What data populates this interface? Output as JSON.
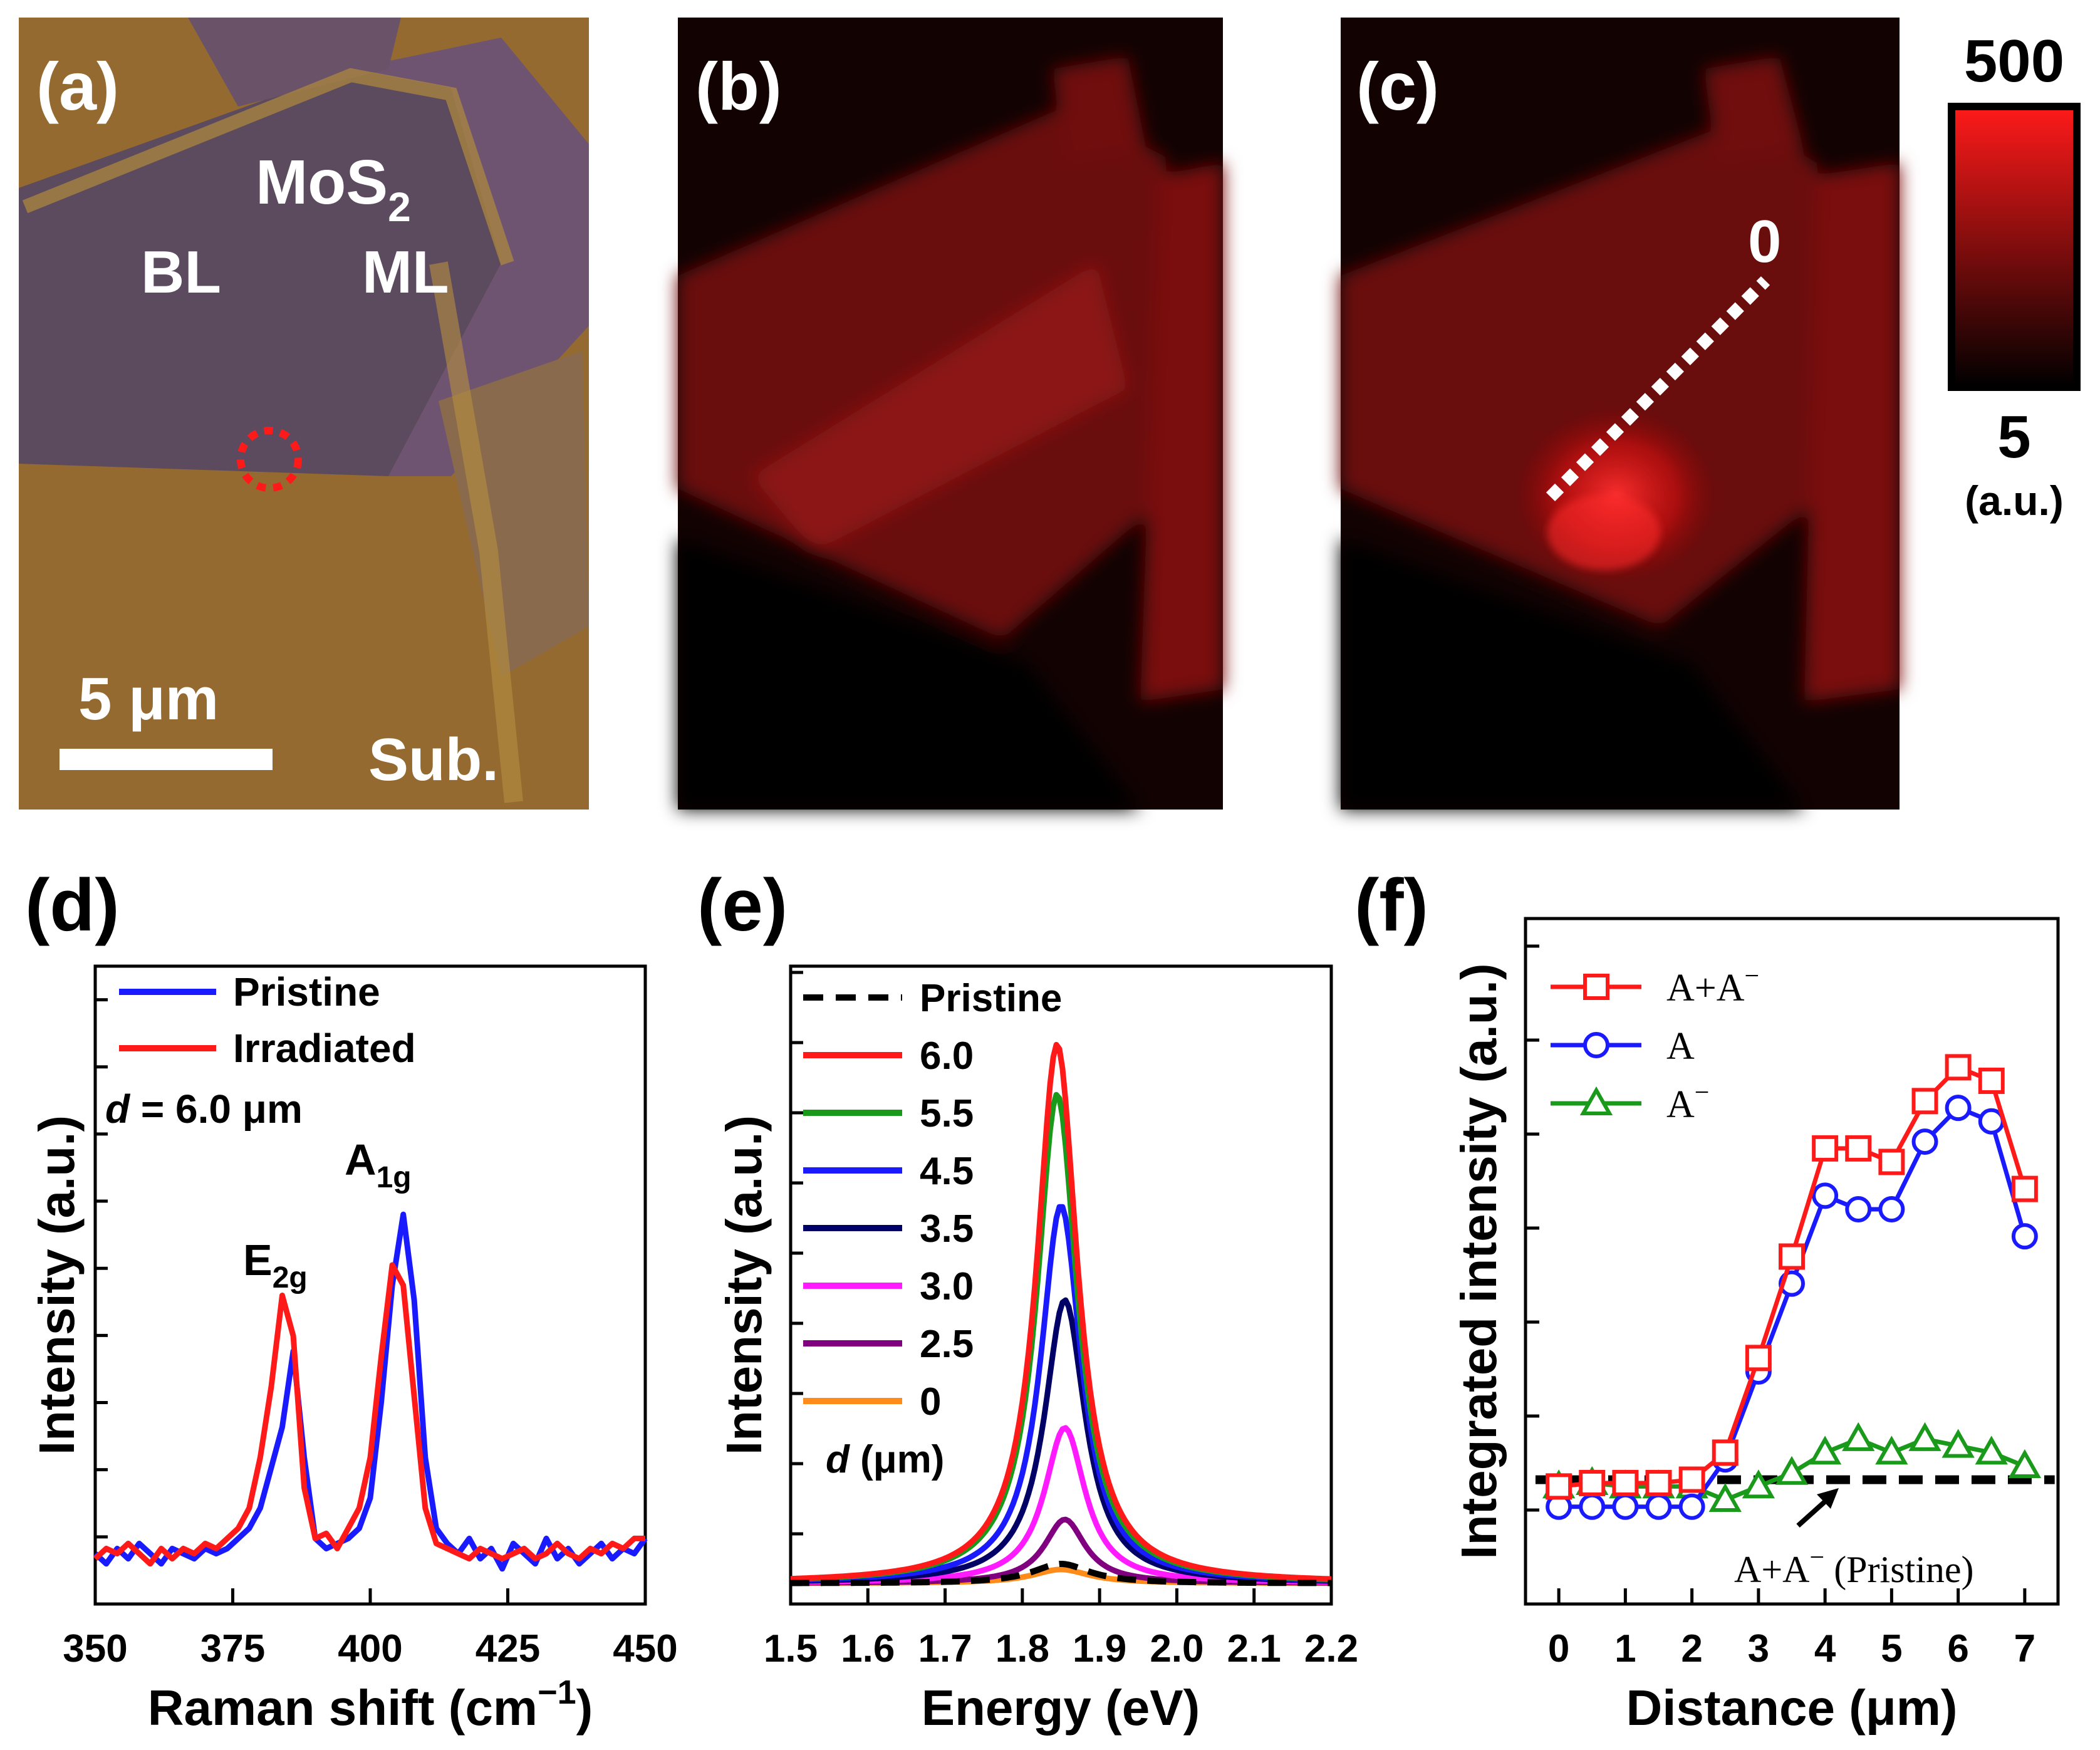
{
  "panels": {
    "a": {
      "label": "(a)",
      "material": "MoS",
      "material_sub": "2",
      "bl": "BL",
      "ml": "ML",
      "scale": "5 μm",
      "sub": "Sub."
    },
    "b": {
      "label": "(b)"
    },
    "c": {
      "label": "(c)",
      "marker": "0"
    },
    "colorbar": {
      "max": "500",
      "min": "5",
      "unit": "(a.u.)",
      "colors": [
        "#ff1a1a",
        "#000000"
      ]
    }
  },
  "chart_data": [
    {
      "panel": "(d)",
      "type": "line",
      "xlabel": "Raman shift (cm",
      "xlabel_sup": "−1",
      "xlabel_end": ")",
      "ylabel": "Intensity (a.u.)",
      "xlim": [
        350,
        450
      ],
      "ylim": [
        0,
        100
      ],
      "xticks": [
        "350",
        "375",
        "400",
        "425",
        "450"
      ],
      "annotation": {
        "d_prefix": "d",
        "d_text": " = 6.0 μm"
      },
      "peaks": [
        {
          "name": "E",
          "sub": "2g",
          "x": 385
        },
        {
          "name": "A",
          "sub": "1g",
          "x": 405
        }
      ],
      "series": [
        {
          "name": "Pristine",
          "color": "#1a1aff",
          "x": [
            350,
            352,
            354,
            356,
            358,
            360,
            362,
            364,
            366,
            368,
            370,
            372,
            374,
            376,
            378,
            380,
            382,
            384,
            386,
            388,
            390,
            392,
            394,
            396,
            398,
            400,
            402,
            404,
            406,
            408,
            410,
            412,
            414,
            416,
            418,
            420,
            422,
            424,
            426,
            428,
            430,
            432,
            434,
            436,
            438,
            440,
            442,
            444,
            446,
            448,
            450
          ],
          "y": [
            5,
            3,
            6,
            4,
            7,
            5,
            3,
            6,
            5,
            4,
            6,
            5,
            6,
            8,
            10,
            14,
            22,
            30,
            45,
            24,
            8,
            6,
            7,
            8,
            10,
            16,
            35,
            58,
            72,
            55,
            24,
            10,
            7,
            5,
            8,
            4,
            6,
            2,
            7,
            5,
            3,
            8,
            4,
            6,
            3,
            5,
            7,
            4,
            6,
            5,
            8
          ]
        },
        {
          "name": "Irradiated",
          "color": "#ff1a1a",
          "x": [
            350,
            352,
            354,
            356,
            358,
            360,
            362,
            364,
            366,
            368,
            370,
            372,
            374,
            376,
            378,
            380,
            382,
            384,
            386,
            388,
            390,
            392,
            394,
            396,
            398,
            400,
            402,
            404,
            406,
            408,
            410,
            412,
            414,
            416,
            418,
            420,
            422,
            424,
            426,
            428,
            430,
            432,
            434,
            436,
            438,
            440,
            442,
            444,
            446,
            448,
            450
          ],
          "y": [
            4,
            6,
            5,
            7,
            5,
            3,
            6,
            4,
            6,
            5,
            7,
            6,
            8,
            10,
            14,
            24,
            38,
            56,
            48,
            18,
            8,
            9,
            6,
            10,
            14,
            24,
            44,
            62,
            58,
            36,
            14,
            7,
            6,
            5,
            4,
            6,
            5,
            4,
            5,
            6,
            4,
            5,
            7,
            5,
            4,
            6,
            5,
            7,
            6,
            8,
            8
          ]
        }
      ]
    },
    {
      "panel": "(e)",
      "type": "line",
      "xlabel": "Energy (eV)",
      "ylabel": "Intensity (a.u.)",
      "xlim": [
        1.5,
        2.2
      ],
      "ylim": [
        0,
        100
      ],
      "xticks": [
        "1.5",
        "1.6",
        "1.7",
        "1.8",
        "1.9",
        "2.0",
        "2.1",
        "2.2"
      ],
      "legend_unit_prefix": "d",
      "legend_unit": " (μm)",
      "series": [
        {
          "name": "Pristine",
          "color": "#000000",
          "dashed": true,
          "peak_x": 1.85,
          "amplitude": 3.5,
          "width": 0.045
        },
        {
          "name": "6.0",
          "color": "#ff1a1a",
          "peak_x": 1.845,
          "amplitude": 97,
          "width": 0.032
        },
        {
          "name": "5.5",
          "color": "#1a9a1a",
          "peak_x": 1.845,
          "amplitude": 88,
          "width": 0.032
        },
        {
          "name": "4.5",
          "color": "#1a1aff",
          "peak_x": 1.85,
          "amplitude": 68,
          "width": 0.032
        },
        {
          "name": "3.5",
          "color": "#000066",
          "peak_x": 1.855,
          "amplitude": 51,
          "width": 0.032
        },
        {
          "name": "3.0",
          "color": "#ff1aff",
          "peak_x": 1.855,
          "amplitude": 28,
          "width": 0.032
        },
        {
          "name": "2.5",
          "color": "#800080",
          "peak_x": 1.855,
          "amplitude": 11.5,
          "width": 0.032
        },
        {
          "name": "0",
          "color": "#ff8c1a",
          "peak_x": 1.85,
          "amplitude": 2.5,
          "width": 0.045
        }
      ]
    },
    {
      "panel": "(f)",
      "type": "line",
      "xlabel": "Distance (μm)",
      "ylabel": "Integrated intensity (a.u.)",
      "xlim": [
        -0.5,
        7.5
      ],
      "ylim": [
        0,
        100
      ],
      "xticks": [
        "0",
        "1",
        "2",
        "3",
        "4",
        "5",
        "6",
        "7"
      ],
      "pristine_level": 17,
      "pristine_label": "A+A",
      "pristine_label_sup": "−",
      "pristine_label_end": " (Pristine)",
      "series": [
        {
          "name": "A+A",
          "name_sup": "−",
          "color": "#ff1a1a",
          "marker": "square",
          "x": [
            0,
            0.5,
            1,
            1.5,
            2,
            2.5,
            3,
            3.5,
            4,
            4.5,
            5,
            5.5,
            6,
            6.5,
            7
          ],
          "y": [
            16,
            16.5,
            16.5,
            16.5,
            17,
            21,
            35,
            50,
            66,
            66,
            64,
            73,
            78,
            76,
            60
          ]
        },
        {
          "name": "A",
          "color": "#1a1aff",
          "marker": "circle",
          "x": [
            0,
            0.5,
            1,
            1.5,
            2,
            2.5,
            3,
            3.5,
            4,
            4.5,
            5,
            5.5,
            6,
            6.5,
            7
          ],
          "y": [
            13,
            13,
            13,
            13,
            13,
            20,
            33,
            46,
            59,
            57,
            57,
            67,
            72,
            70,
            53
          ]
        },
        {
          "name": "A",
          "name_sup": "−",
          "color": "#1a9a1a",
          "marker": "triangle",
          "x": [
            0,
            0.5,
            1,
            1.5,
            2,
            2.5,
            3,
            3.5,
            4,
            4.5,
            5,
            5.5,
            6,
            6.5,
            7
          ],
          "y": [
            16,
            16.5,
            16,
            16,
            16,
            14,
            16,
            18,
            21,
            23,
            21,
            23,
            22,
            21,
            19
          ]
        }
      ]
    }
  ]
}
